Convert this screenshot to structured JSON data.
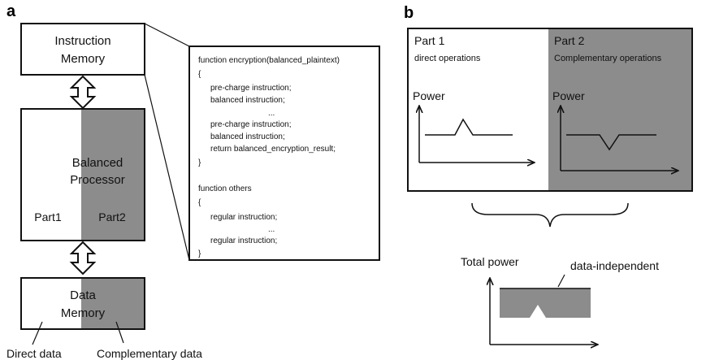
{
  "panel_a": {
    "letter": "a",
    "instruction_memory": {
      "line1": "Instruction",
      "line2": "Memory"
    },
    "processor": {
      "line1": "Balanced",
      "line2": "Processor",
      "part1": "Part1",
      "part2": "Part2"
    },
    "data_memory": {
      "line1": "Data",
      "line2": "Memory"
    },
    "direct_data_label": "Direct data",
    "complementary_data_label": "Complementary data",
    "code_lines": [
      "function encryption(balanced_plaintext)",
      "{",
      "pre-charge instruction;",
      "balanced instruction;",
      "...",
      "pre-charge instruction;",
      "balanced instruction;",
      "return balanced_encryption_result;",
      "}",
      "function others",
      "{",
      "regular instruction;",
      "...",
      "regular instruction;",
      "}"
    ]
  },
  "panel_b": {
    "letter": "b",
    "part1": {
      "title": "Part 1",
      "subtitle": "direct operations",
      "axis_label": "Power"
    },
    "part2": {
      "title": "Part 2",
      "subtitle": "Complementary operations",
      "axis_label": "Power"
    },
    "total_power_label": "Total power",
    "data_independent_label": "data-independent"
  },
  "colors": {
    "shade": "#8c8c8c",
    "stroke": "#111111",
    "background": "#ffffff"
  }
}
